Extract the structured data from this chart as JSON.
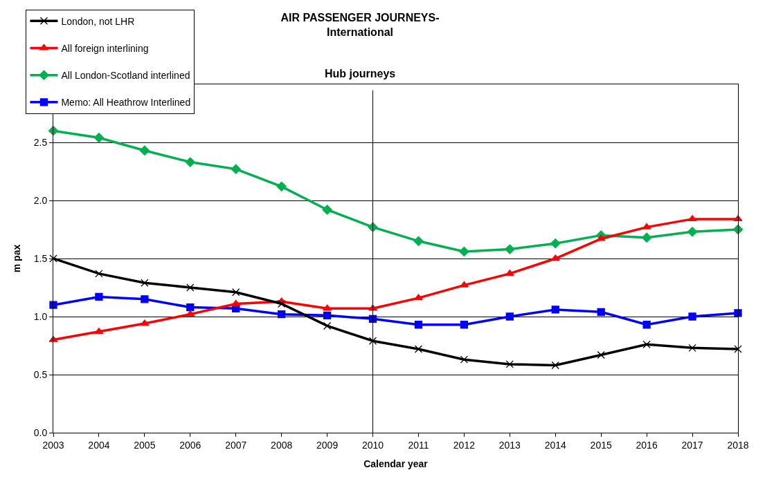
{
  "chart_data": {
    "type": "line",
    "title": "AIR PASSENGER JOURNEYS-\nInternational",
    "subtitle": "Hub journeys",
    "xlabel": "Calendar year",
    "ylabel": "m pax",
    "x": [
      2003,
      2004,
      2005,
      2006,
      2007,
      2008,
      2009,
      2010,
      2011,
      2012,
      2013,
      2014,
      2015,
      2016,
      2017,
      2018
    ],
    "series": [
      {
        "name": "London, not LHR",
        "color": "#000000",
        "marker": "cross",
        "values": [
          1.5,
          1.37,
          1.29,
          1.25,
          1.21,
          1.11,
          0.92,
          0.79,
          0.72,
          0.63,
          0.59,
          0.58,
          0.67,
          0.76,
          0.73,
          0.72
        ]
      },
      {
        "name": "All foreign interlining",
        "color": "#ff0000",
        "marker": "triangle",
        "values": [
          0.8,
          0.87,
          0.94,
          1.02,
          1.11,
          1.13,
          1.07,
          1.07,
          1.16,
          1.27,
          1.37,
          1.5,
          1.67,
          1.77,
          1.84,
          1.84
        ]
      },
      {
        "name": "All London-Scotland interlined",
        "color": "#00b050",
        "marker": "diamond",
        "values": [
          2.6,
          2.54,
          2.43,
          2.33,
          2.27,
          2.12,
          1.92,
          1.77,
          1.65,
          1.56,
          1.58,
          1.63,
          1.7,
          1.68,
          1.73,
          1.75
        ]
      },
      {
        "name": "Memo: All Heathrow Interlined",
        "color": "#0000ff",
        "marker": "square",
        "values": [
          1.1,
          1.17,
          1.15,
          1.08,
          1.07,
          1.02,
          1.01,
          0.98,
          0.93,
          0.93,
          1.0,
          1.06,
          1.04,
          0.93,
          1.0,
          1.03
        ]
      }
    ],
    "xlim": [
      2003,
      2018
    ],
    "xticks": [
      2003,
      2004,
      2005,
      2006,
      2007,
      2008,
      2009,
      2010,
      2011,
      2012,
      2013,
      2014,
      2015,
      2016,
      2017,
      2018
    ],
    "ylim": [
      0,
      3
    ],
    "yticks": [
      {
        "value": 0,
        "label": "0.0"
      },
      {
        "value": 0.5,
        "label": "0.5"
      },
      {
        "value": 1,
        "label": "1.0"
      },
      {
        "value": 1.5,
        "label": "1.5"
      },
      {
        "value": 2,
        "label": "2.0"
      },
      {
        "value": 2.5,
        "label": "2.5"
      },
      {
        "value": 3,
        "label": null
      }
    ],
    "ref_lines": [
      {
        "axis": "x",
        "value": 2010,
        "color": "#000000"
      }
    ],
    "grid": "y",
    "legend": "top left",
    "line_style": "solid"
  }
}
